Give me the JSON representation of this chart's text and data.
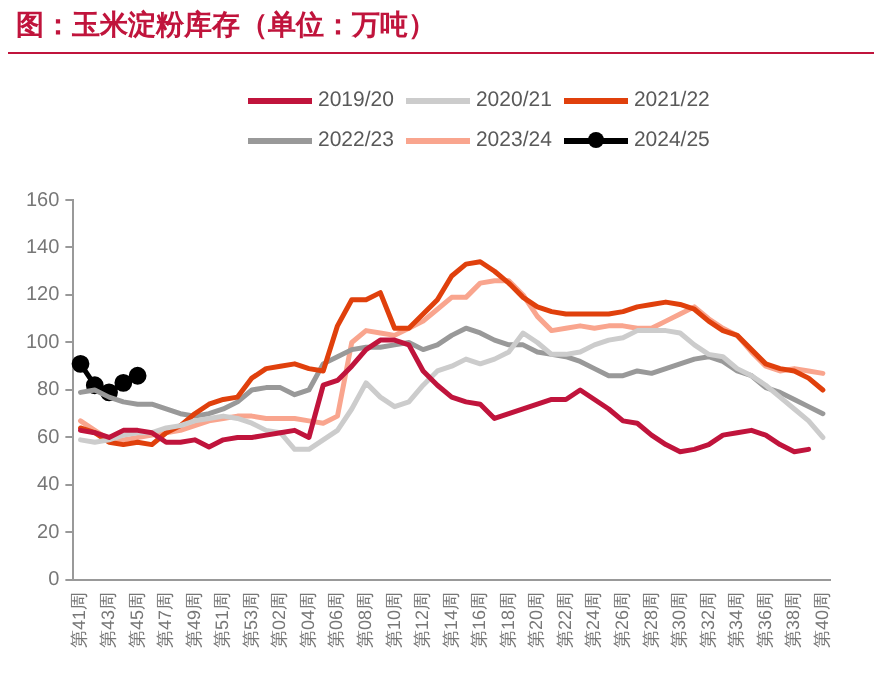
{
  "chart_data": {
    "type": "line",
    "title": "图：玉米淀粉库存（单位：万吨）",
    "categories": [
      "第41周",
      null,
      "第43周",
      null,
      "第45周",
      null,
      "第47周",
      null,
      "第49周",
      null,
      "第51周",
      null,
      "第53周",
      null,
      "第02周",
      null,
      "第04周",
      null,
      "第06周",
      null,
      "第08周",
      null,
      "第10周",
      null,
      "第12周",
      null,
      "第14周",
      null,
      "第16周",
      null,
      "第18周",
      null,
      "第20周",
      null,
      "第22周",
      null,
      "第24周",
      null,
      "第26周",
      null,
      "第28周",
      null,
      "第30周",
      null,
      "第32周",
      null,
      "第34周",
      null,
      "第36周",
      null,
      "第38周",
      null,
      "第40周"
    ],
    "series": [
      {
        "name": "2019/20",
        "color": "#c0143c",
        "values": [
          63,
          62,
          60,
          63,
          63,
          62,
          58,
          58,
          59,
          56,
          59,
          60,
          60,
          61,
          62,
          63,
          60,
          82,
          84,
          90,
          97,
          101,
          101,
          99,
          88,
          82,
          77,
          75,
          74,
          68,
          70,
          72,
          74,
          76,
          76,
          80,
          76,
          72,
          67,
          66,
          61,
          57,
          54,
          55,
          57,
          61,
          62,
          63,
          61,
          57,
          54,
          55,
          null
        ]
      },
      {
        "name": "2020/21",
        "color": "#cccccc",
        "values": [
          59,
          58,
          59,
          61,
          62,
          62,
          64,
          65,
          67,
          68,
          69,
          68,
          66,
          63,
          62,
          55,
          55,
          59,
          63,
          72,
          83,
          77,
          73,
          75,
          82,
          88,
          90,
          93,
          91,
          93,
          96,
          104,
          100,
          95,
          95,
          96,
          99,
          101,
          102,
          105,
          105,
          105,
          104,
          99,
          95,
          94,
          89,
          86,
          82,
          77,
          72,
          67,
          60
        ]
      },
      {
        "name": "2021/22",
        "color": "#e0400c",
        "values": [
          64,
          62,
          58,
          57,
          58,
          57,
          62,
          65,
          70,
          74,
          76,
          77,
          85,
          89,
          90,
          91,
          89,
          88,
          107,
          118,
          118,
          121,
          106,
          106,
          112,
          118,
          128,
          133,
          134,
          130,
          125,
          119,
          115,
          113,
          112,
          112,
          112,
          112,
          113,
          115,
          116,
          117,
          116,
          114,
          109,
          105,
          103,
          97,
          91,
          89,
          88,
          85,
          80
        ]
      },
      {
        "name": "2022/23",
        "color": "#999999",
        "values": [
          79,
          80,
          77,
          75,
          74,
          74,
          72,
          70,
          69,
          70,
          72,
          75,
          80,
          81,
          81,
          78,
          80,
          91,
          94,
          97,
          98,
          98,
          99,
          100,
          97,
          99,
          103,
          106,
          104,
          101,
          99,
          99,
          96,
          95,
          94,
          92,
          89,
          86,
          86,
          88,
          87,
          89,
          91,
          93,
          94,
          92,
          88,
          86,
          81,
          79,
          76,
          73,
          70
        ]
      },
      {
        "name": "2023/24",
        "color": "#f9a58e",
        "values": [
          67,
          63,
          59,
          59,
          60,
          61,
          62,
          63,
          65,
          67,
          68,
          69,
          69,
          68,
          68,
          68,
          67,
          66,
          69,
          100,
          105,
          104,
          103,
          106,
          109,
          114,
          119,
          119,
          125,
          126,
          126,
          120,
          111,
          105,
          106,
          107,
          106,
          107,
          107,
          106,
          106,
          109,
          112,
          115,
          110,
          106,
          103,
          96,
          90,
          88,
          89,
          88,
          87
        ]
      },
      {
        "name": "2024/25",
        "color": "#000000",
        "marker": "circle",
        "values": [
          91,
          82,
          79,
          83,
          86,
          null,
          null,
          null,
          null,
          null,
          null,
          null,
          null,
          null,
          null,
          null,
          null,
          null,
          null,
          null,
          null,
          null,
          null,
          null,
          null,
          null,
          null,
          null,
          null,
          null,
          null,
          null,
          null,
          null,
          null,
          null,
          null,
          null,
          null,
          null,
          null,
          null,
          null,
          null,
          null,
          null,
          null,
          null,
          null,
          null,
          null,
          null,
          null
        ]
      }
    ],
    "ylim": [
      0,
      160
    ],
    "yticks": [
      0,
      20,
      40,
      60,
      80,
      100,
      120,
      140,
      160
    ],
    "grid": false,
    "legend": "top",
    "marker": "none"
  }
}
